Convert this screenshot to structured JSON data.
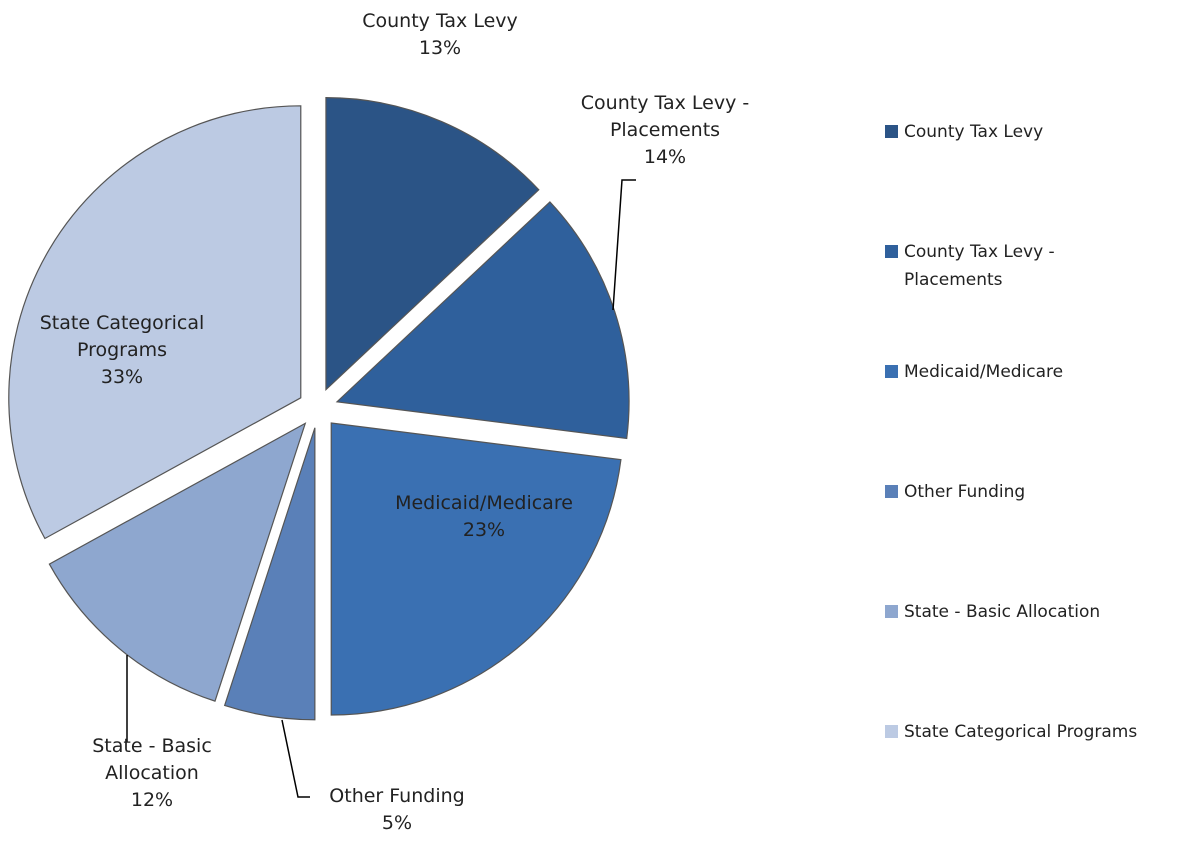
{
  "chart_data": {
    "type": "pie",
    "categories": [
      "County Tax Levy",
      "County Tax Levy - Placements",
      "Medicaid/Medicare",
      "Other Funding",
      "State - Basic Allocation",
      "State Categorical Programs"
    ],
    "values": [
      13,
      14,
      23,
      5,
      12,
      33
    ],
    "value_labels": [
      "13%",
      "14%",
      "23%",
      "5%",
      "12%",
      "33%"
    ],
    "colors": [
      "#2b5486",
      "#2f609c",
      "#3a70b2",
      "#5a80b8",
      "#8ea7cf",
      "#bccae3"
    ],
    "legend": "right"
  }
}
